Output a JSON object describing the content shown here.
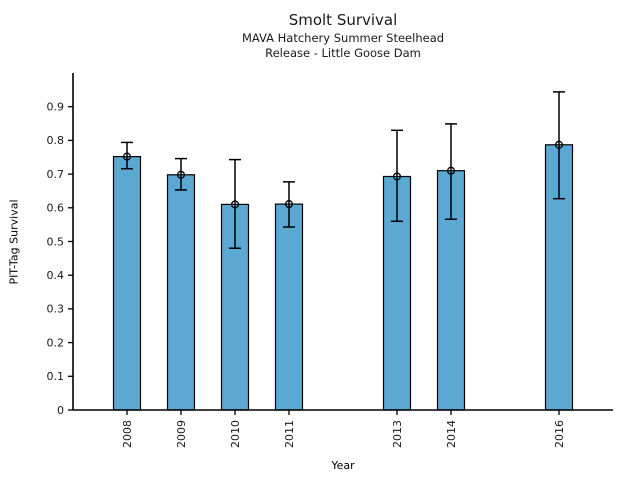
{
  "header": {
    "title": "Smolt Survival",
    "subtitle1": "MAVA Hatchery Summer Steelhead",
    "subtitle2": "Release - Little Goose Dam"
  },
  "chart_data": {
    "type": "bar",
    "title": "Smolt Survival",
    "subtitle": "MAVA Hatchery Summer Steelhead — Release - Little Goose Dam",
    "xlabel": "Year",
    "ylabel": "PIT-Tag Survival",
    "categories": [
      "2008",
      "2009",
      "2010",
      "2011",
      "2013",
      "2014",
      "2016"
    ],
    "years": [
      2008,
      2009,
      2010,
      2011,
      2013,
      2014,
      2016
    ],
    "values": [
      0.752,
      0.698,
      0.61,
      0.611,
      0.693,
      0.71,
      0.787
    ],
    "error_low": [
      0.716,
      0.653,
      0.48,
      0.543,
      0.56,
      0.566,
      0.627
    ],
    "error_high": [
      0.794,
      0.746,
      0.743,
      0.677,
      0.83,
      0.849,
      0.944
    ],
    "xlim": [
      2007,
      2017
    ],
    "ylim": [
      0,
      1.0
    ],
    "yticks": [
      "0",
      "0.1",
      "0.2",
      "0.3",
      "0.4",
      "0.5",
      "0.6",
      "0.7",
      "0.8",
      "0.9"
    ],
    "grid": false,
    "legend": "none",
    "marker": "open-circle",
    "bar_width_years": 0.5,
    "bar_color": "#5BA9D3",
    "bar_edge_color": "#000000",
    "error_color": "#000000",
    "axis_color": "#000000",
    "text_color": "#1a1a1a"
  }
}
